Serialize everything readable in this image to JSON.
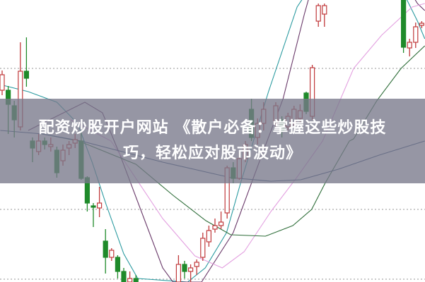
{
  "banner": {
    "line1": "配资炒股开户网站 《散户必备：掌握这些炒股技",
    "line2": "巧，轻松应对股市波动》"
  },
  "chart_data": {
    "type": "candlestick",
    "ylim": [
      0,
      400
    ],
    "gridlines": [
      303,
      103,
      4
    ],
    "colors": {
      "up": "#c0393b",
      "down": "#1f8a2a",
      "grid": "#aaaaaa"
    },
    "candles": [
      [
        0,
        272,
        300,
        265,
        294
      ],
      [
        1,
        272,
        278,
        210,
        252
      ],
      [
        2,
        250,
        257,
        205,
        230
      ],
      [
        3,
        220,
        340,
        215,
        299
      ],
      [
        4,
        299,
        347,
        277,
        289
      ],
      [
        5,
        200,
        205,
        170,
        190
      ],
      [
        6,
        185,
        210,
        180,
        200
      ],
      [
        7,
        200,
        205,
        188,
        195
      ],
      [
        8,
        192,
        205,
        185,
        195
      ],
      [
        9,
        187,
        192,
        148,
        155
      ],
      [
        10,
        172,
        195,
        165,
        187
      ],
      [
        11,
        190,
        200,
        180,
        195
      ],
      [
        12,
        197,
        210,
        190,
        202
      ],
      [
        13,
        200,
        215,
        145,
        147
      ],
      [
        14,
        148,
        150,
        100,
        112
      ],
      [
        15,
        108,
        112,
        78,
        106
      ],
      [
        16,
        105,
        135,
        92,
        112
      ],
      [
        17,
        58,
        75,
        12,
        35
      ],
      [
        18,
        35,
        48,
        30,
        45
      ],
      [
        19,
        35,
        38,
        5,
        15
      ],
      [
        20,
        15,
        20,
        -10,
        -5
      ],
      [
        21,
        0,
        15,
        -10,
        5
      ],
      [
        22,
        5,
        10,
        -10,
        0
      ],
      [
        29,
        0,
        38,
        -5,
        25
      ],
      [
        30,
        25,
        30,
        5,
        15
      ],
      [
        31,
        15,
        25,
        0,
        20
      ],
      [
        32,
        22,
        32,
        10,
        28
      ],
      [
        33,
        35,
        70,
        30,
        62
      ],
      [
        34,
        57,
        80,
        50,
        73
      ],
      [
        35,
        75,
        90,
        70,
        80
      ],
      [
        36,
        80,
        100,
        75,
        85
      ],
      [
        37,
        98,
        165,
        90,
        162
      ],
      [
        38,
        162,
        170,
        140,
        147
      ],
      [
        39,
        147,
        185,
        145,
        175
      ],
      [
        40,
        175,
        200,
        170,
        195
      ],
      [
        41,
        245,
        260,
        200,
        205
      ],
      [
        42,
        205,
        232,
        195,
        225
      ],
      [
        43,
        225,
        255,
        215,
        245
      ],
      [
        45,
        225,
        255,
        220,
        250
      ],
      [
        46,
        230,
        235,
        205,
        215
      ],
      [
        47,
        220,
        240,
        215,
        235
      ],
      [
        48,
        225,
        250,
        220,
        245
      ],
      [
        49,
        232,
        252,
        225,
        243
      ],
      [
        50,
        268,
        270,
        238,
        242
      ],
      [
        51,
        235,
        308,
        230,
        304
      ],
      [
        52,
        370,
        395,
        362,
        392
      ],
      [
        53,
        380,
        395,
        362,
        392
      ],
      [
        66,
        420,
        430,
        325,
        333
      ],
      [
        67,
        332,
        345,
        320,
        340
      ],
      [
        68,
        340,
        368,
        332,
        362
      ],
      [
        69,
        364,
        370,
        360,
        367
      ]
    ],
    "moving_averages": [
      {
        "color": "#2a9aa0",
        "points": [
          [
            -0.3,
            280
          ],
          [
            4.3,
            270
          ],
          [
            9.0,
            255
          ],
          [
            12.4,
            225
          ],
          [
            14.8,
            170
          ],
          [
            17.1,
            110
          ],
          [
            20,
            40
          ],
          [
            22.3,
            5
          ],
          [
            30.5,
            0
          ],
          [
            33.4,
            20
          ],
          [
            36.9,
            70
          ],
          [
            39.2,
            140
          ],
          [
            43.8,
            270
          ],
          [
            48.5,
            390
          ],
          [
            50.8,
            420
          ]
        ]
      },
      {
        "color": "#2a9aa0",
        "points": [
          [
            66,
            410
          ],
          [
            68.3,
            370
          ],
          [
            69.5,
            345
          ]
        ]
      },
      {
        "color": "#6a3a6a",
        "points": [
          [
            4.3,
            215
          ],
          [
            10.1,
            240
          ],
          [
            13.6,
            255
          ],
          [
            16.5,
            240
          ],
          [
            19.4,
            180
          ],
          [
            22.9,
            100
          ],
          [
            26.4,
            20
          ],
          [
            28.1,
            0
          ],
          [
            32.8,
            0
          ],
          [
            38,
            70
          ],
          [
            42.7,
            180
          ],
          [
            46.2,
            260
          ],
          [
            49.7,
            380
          ],
          [
            51,
            420
          ]
        ]
      },
      {
        "color": "#6a3a6a",
        "points": [
          [
            66.5,
            420
          ],
          [
            68.3,
            395
          ],
          [
            69.5,
            385
          ]
        ]
      },
      {
        "color": "#e3a0e0",
        "points": [
          [
            11.3,
            230
          ],
          [
            17.9,
            200
          ],
          [
            26.4,
            90
          ],
          [
            31.7,
            37
          ],
          [
            36.2,
            20
          ],
          [
            39.8,
            43
          ],
          [
            44.2,
            100
          ],
          [
            48.6,
            150
          ],
          [
            52.7,
            200
          ],
          [
            57.8,
            303
          ],
          [
            62.4,
            350
          ],
          [
            67.4,
            390
          ],
          [
            69.5,
            395
          ]
        ]
      },
      {
        "color": "#2f6e3a",
        "points": [
          [
            6.6,
            210
          ],
          [
            12.6,
            200
          ],
          [
            22,
            167
          ],
          [
            28.1,
            123
          ],
          [
            33.5,
            87
          ],
          [
            37.6,
            67
          ],
          [
            43.3,
            65
          ],
          [
            47.8,
            80
          ],
          [
            50.9,
            103
          ],
          [
            53.1,
            140
          ],
          [
            57.1,
            200
          ],
          [
            57.8,
            203
          ],
          [
            61.6,
            257
          ],
          [
            65.6,
            303
          ],
          [
            69.5,
            335
          ]
        ]
      },
      {
        "color": "#34507a",
        "points": [
          [
            -0.3,
            215
          ],
          [
            6.6,
            210
          ],
          [
            13,
            200
          ],
          [
            26.4,
            170
          ],
          [
            37.6,
            148
          ],
          [
            44.2,
            143
          ],
          [
            49.1,
            145
          ],
          [
            55.3,
            160
          ],
          [
            62,
            180
          ],
          [
            69.5,
            200
          ]
        ]
      }
    ]
  }
}
